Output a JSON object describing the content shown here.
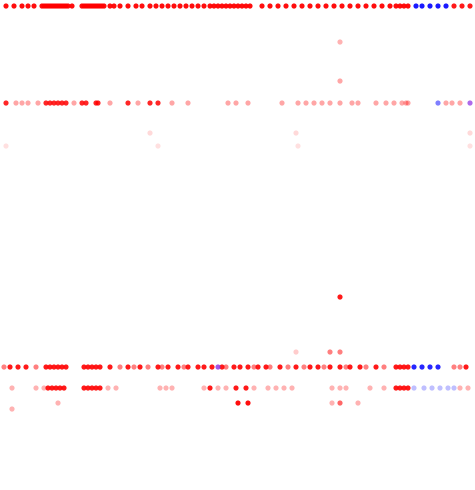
{
  "chart_data": {
    "type": "scatter",
    "title": "",
    "xlabel": "",
    "ylabel": "",
    "grid": false,
    "legend": "none",
    "colors": {
      "red": "#ff0000",
      "blue": "#0000ff",
      "purple": "#8a2be2"
    },
    "rows": [
      {
        "y": 6,
        "default_opacity": 1.0,
        "groups": [
          {
            "color": "red",
            "opacity": 0.95,
            "xs": [
              6,
              14,
              22,
              28,
              34,
              42,
              44,
              46,
              48,
              50,
              52,
              54,
              56,
              58,
              60,
              62,
              64,
              66,
              68,
              72,
              82,
              84,
              86,
              88,
              90,
              92,
              94,
              96,
              98,
              100,
              102,
              104,
              110,
              114,
              120,
              128,
              136,
              142,
              150,
              156,
              162,
              168,
              174,
              180,
              186,
              192,
              198,
              204,
              210,
              214,
              218,
              222,
              226,
              230,
              234,
              238,
              242,
              246,
              250,
              262,
              270,
              278,
              286,
              294,
              302,
              310,
              318,
              326,
              334,
              342,
              350,
              358,
              366,
              374,
              382,
              390,
              396,
              400,
              404,
              408
            ]
          },
          {
            "color": "blue",
            "opacity": 0.9,
            "xs": [
              416,
              422,
              430,
              438,
              446
            ]
          },
          {
            "color": "red",
            "opacity": 0.9,
            "xs": [
              454,
              462,
              470
            ]
          }
        ]
      },
      {
        "y": 42,
        "groups": [
          {
            "color": "red",
            "opacity": 0.3,
            "xs": [
              340
            ]
          }
        ]
      },
      {
        "y": 81,
        "groups": [
          {
            "color": "red",
            "opacity": 0.35,
            "xs": [
              340
            ]
          }
        ]
      },
      {
        "y": 103,
        "groups": [
          {
            "color": "red",
            "opacity": 0.85,
            "xs": [
              6,
              46,
              50,
              54,
              58,
              62,
              66,
              82,
              86,
              96,
              98,
              128,
              150,
              158
            ]
          },
          {
            "color": "red",
            "opacity": 0.35,
            "xs": [
              16,
              22,
              28,
              38,
              74,
              110,
              138,
              172,
              188,
              228,
              236,
              248,
              282,
              298,
              306,
              314,
              322,
              330,
              340,
              352,
              358,
              376,
              386,
              394,
              402,
              406,
              408,
              446,
              452,
              460
            ]
          },
          {
            "color": "blue",
            "opacity": 0.5,
            "xs": [
              438
            ]
          },
          {
            "color": "purple",
            "opacity": 0.7,
            "xs": [
              470
            ]
          }
        ]
      },
      {
        "y": 133,
        "groups": [
          {
            "color": "red",
            "opacity": 0.15,
            "xs": [
              150,
              296,
              470
            ]
          }
        ]
      },
      {
        "y": 146,
        "groups": [
          {
            "color": "red",
            "opacity": 0.12,
            "xs": [
              6,
              158,
              298,
              470
            ]
          }
        ]
      },
      {
        "y": 297,
        "groups": [
          {
            "color": "red",
            "opacity": 0.9,
            "xs": [
              340
            ]
          }
        ]
      },
      {
        "y": 352,
        "groups": [
          {
            "color": "red",
            "opacity": 0.5,
            "xs": [
              330,
              340
            ]
          },
          {
            "color": "red",
            "opacity": 0.2,
            "xs": [
              296
            ]
          }
        ]
      },
      {
        "y": 367,
        "groups": [
          {
            "color": "red",
            "opacity": 0.9,
            "xs": [
              10,
              18,
              26,
              46,
              50,
              54,
              58,
              62,
              66,
              84,
              88,
              92,
              96,
              100,
              110,
              128,
              140,
              158,
              168,
              178,
              188,
              198,
              204,
              212,
              222,
              234,
              240,
              248,
              258,
              266,
              280,
              296,
              310,
              318,
              330,
              340,
              350,
              360,
              376,
              396,
              400,
              404,
              408,
              466
            ]
          },
          {
            "color": "red",
            "opacity": 0.5,
            "xs": [
              4,
              36,
              120,
              134,
              148,
              162,
              184,
              226,
              254,
              270,
              288,
              304,
              324,
              346,
              366,
              384,
              454,
              460
            ]
          },
          {
            "color": "blue",
            "opacity": 0.85,
            "xs": [
              414,
              422,
              430,
              438
            ]
          },
          {
            "color": "purple",
            "opacity": 0.8,
            "xs": [
              218
            ]
          }
        ]
      },
      {
        "y": 388,
        "groups": [
          {
            "color": "red",
            "opacity": 0.9,
            "xs": [
              48,
              52,
              56,
              60,
              64,
              84,
              88,
              92,
              96,
              100,
              210,
              236,
              246,
              396,
              400,
              404,
              408
            ]
          },
          {
            "color": "red",
            "opacity": 0.3,
            "xs": [
              12,
              36,
              44,
              108,
              116,
              160,
              166,
              172,
              204,
              218,
              226,
              254,
              268,
              276,
              284,
              292,
              332,
              340,
              346,
              370,
              384,
              460,
              468
            ]
          },
          {
            "color": "blue",
            "opacity": 0.25,
            "xs": [
              414,
              424,
              432,
              440,
              448,
              454
            ]
          }
        ]
      },
      {
        "y": 403,
        "groups": [
          {
            "color": "red",
            "opacity": 0.95,
            "xs": [
              238,
              248
            ]
          },
          {
            "color": "red",
            "opacity": 0.6,
            "xs": [
              340
            ]
          },
          {
            "color": "red",
            "opacity": 0.3,
            "xs": [
              58,
              332,
              358
            ]
          }
        ]
      },
      {
        "y": 409,
        "groups": [
          {
            "color": "red",
            "opacity": 0.3,
            "xs": [
              12
            ]
          }
        ]
      }
    ]
  }
}
